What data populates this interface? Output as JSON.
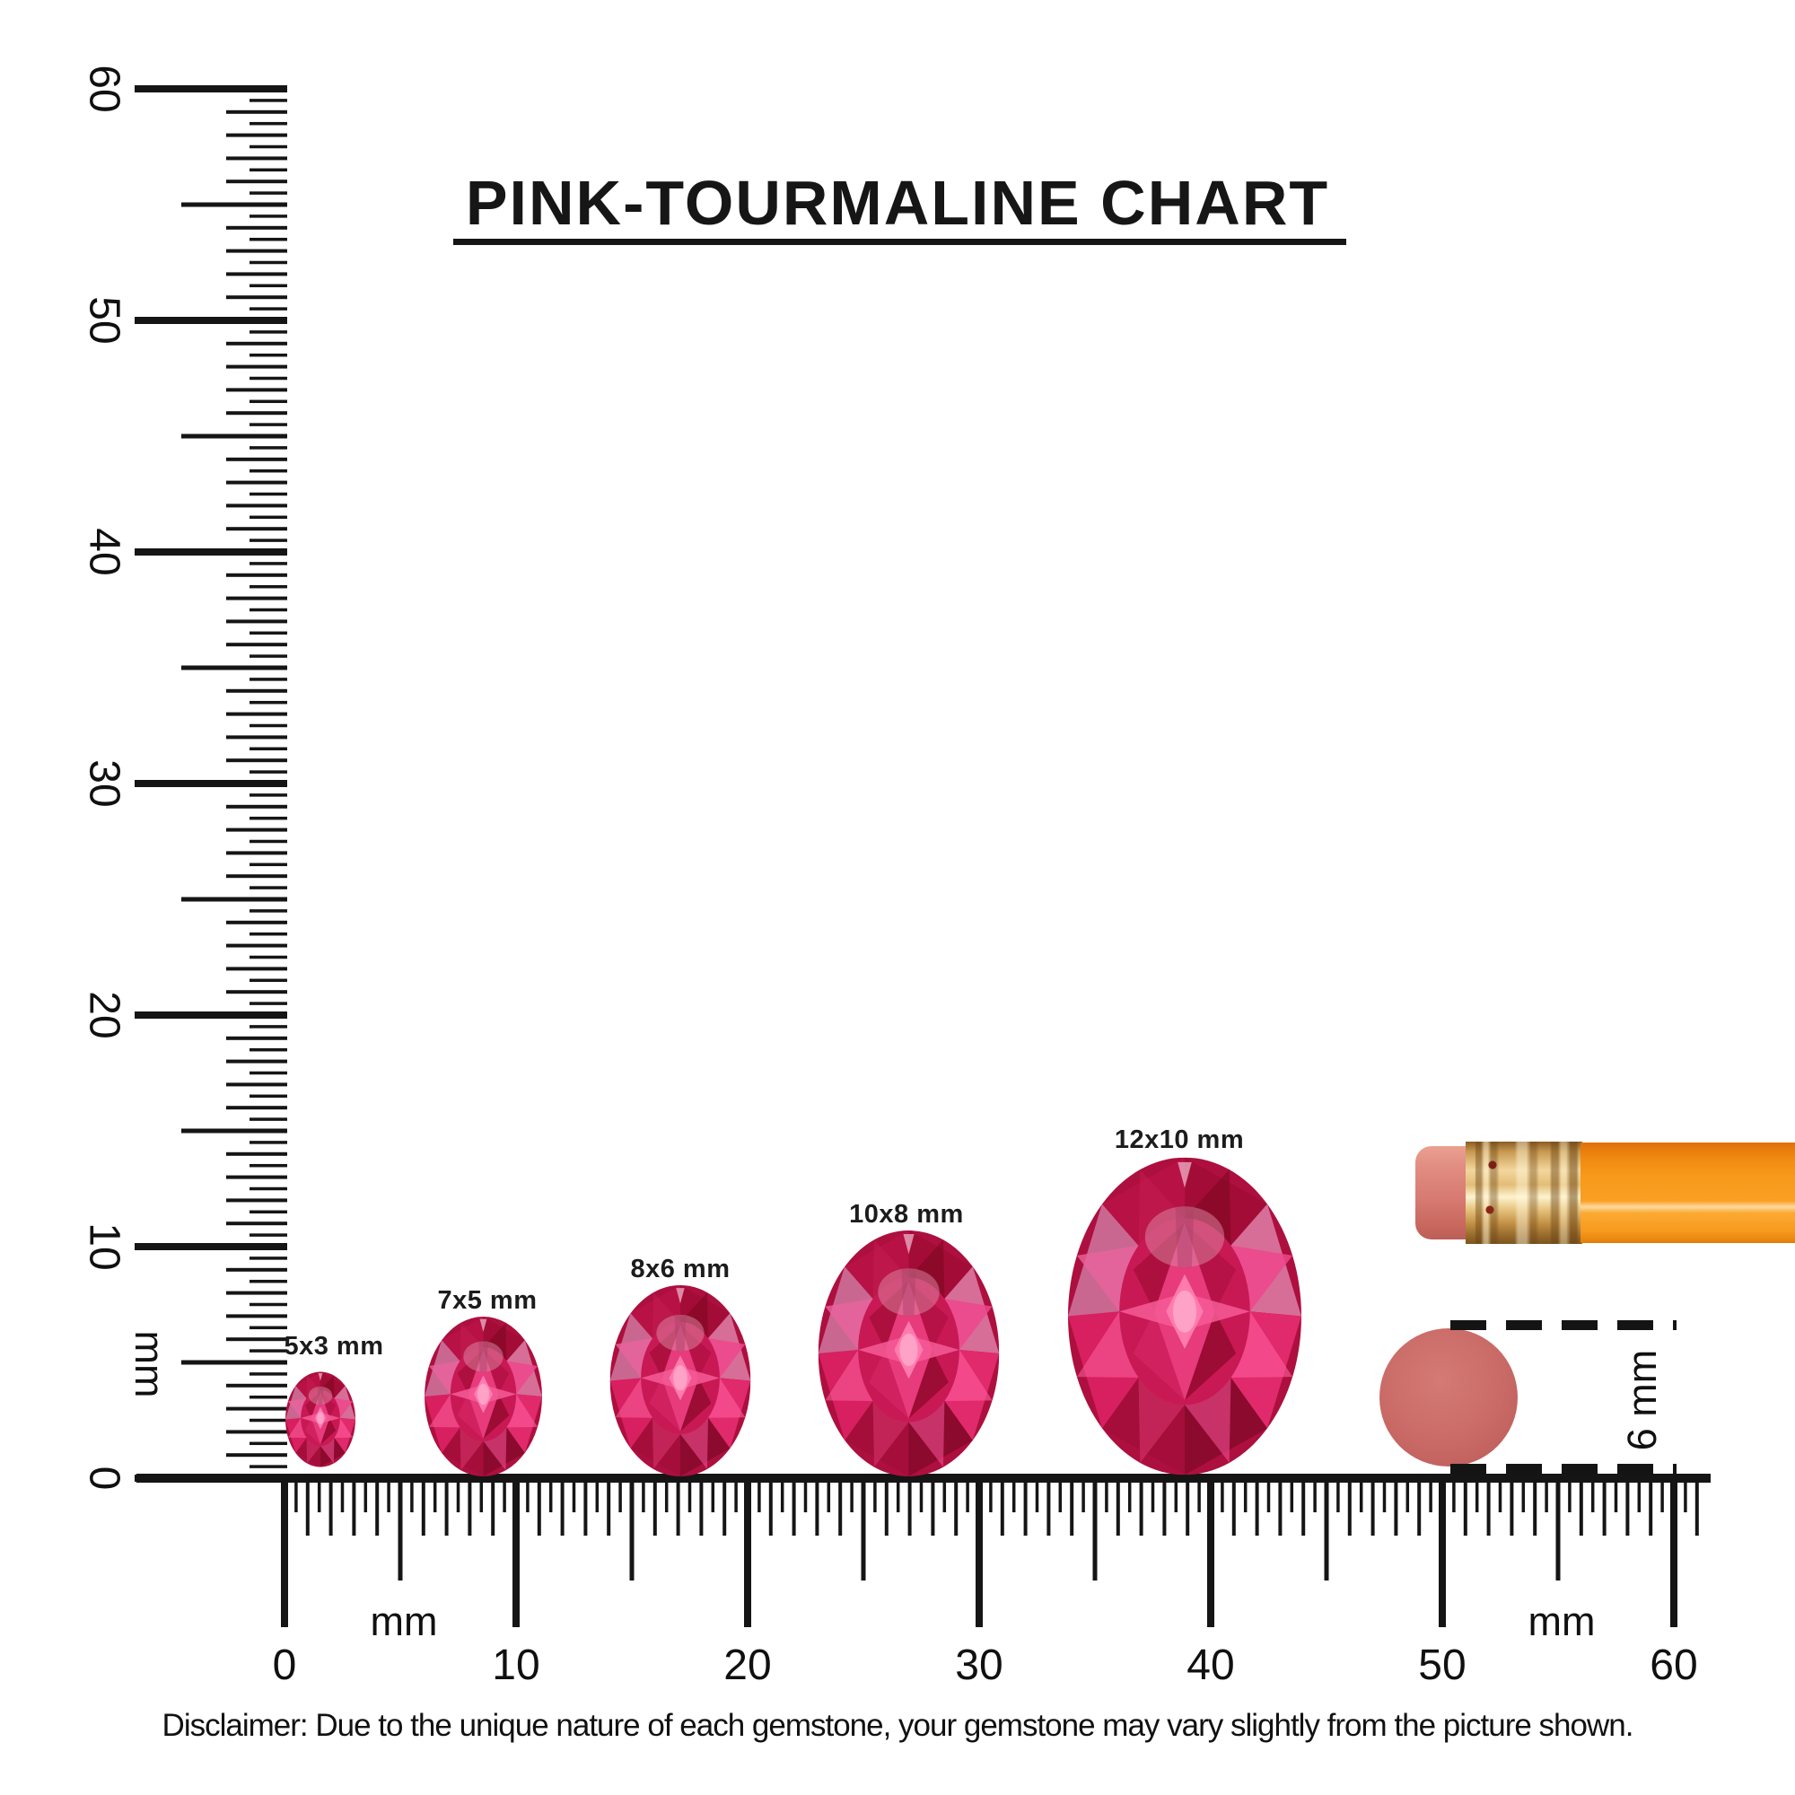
{
  "title": {
    "text": "PINK-TOURMALINE CHART"
  },
  "rulers": {
    "vertical": {
      "unit_label": "mm",
      "tick_labels": [
        "0",
        "10",
        "20",
        "30",
        "40",
        "50",
        "60"
      ]
    },
    "horizontal": {
      "unit_label": "mm",
      "tick_labels": [
        "0",
        "10",
        "20",
        "30",
        "40",
        "50",
        "60"
      ]
    }
  },
  "gems": [
    {
      "label": "5x3 mm",
      "size_mm": "5x3"
    },
    {
      "label": "7x5 mm",
      "size_mm": "7x5"
    },
    {
      "label": "8x6 mm",
      "size_mm": "8x6"
    },
    {
      "label": "10x8 mm",
      "size_mm": "10x8"
    },
    {
      "label": "12x10 mm",
      "size_mm": "12x10"
    }
  ],
  "scale_references": {
    "circle_label": "6 mm",
    "pencil": "pencil-with-eraser-tip"
  },
  "disclaimer": "Disclaimer: Due to the unique nature of each gemstone, your gemstone may vary slightly from the picture shown.",
  "colors": {
    "ink": "#151515",
    "gem_bright": "#e73b7b",
    "gem_mid": "#c81955",
    "gem_deep": "#9c0b30",
    "gem_light": "#d66e97",
    "gem_highlight": "#ff7db2",
    "circle_fill": "#c96a66",
    "pencil_body": "#f89a1b",
    "pencil_eraser": "#d87b72",
    "pencil_ferrule": "#e3bd77"
  }
}
